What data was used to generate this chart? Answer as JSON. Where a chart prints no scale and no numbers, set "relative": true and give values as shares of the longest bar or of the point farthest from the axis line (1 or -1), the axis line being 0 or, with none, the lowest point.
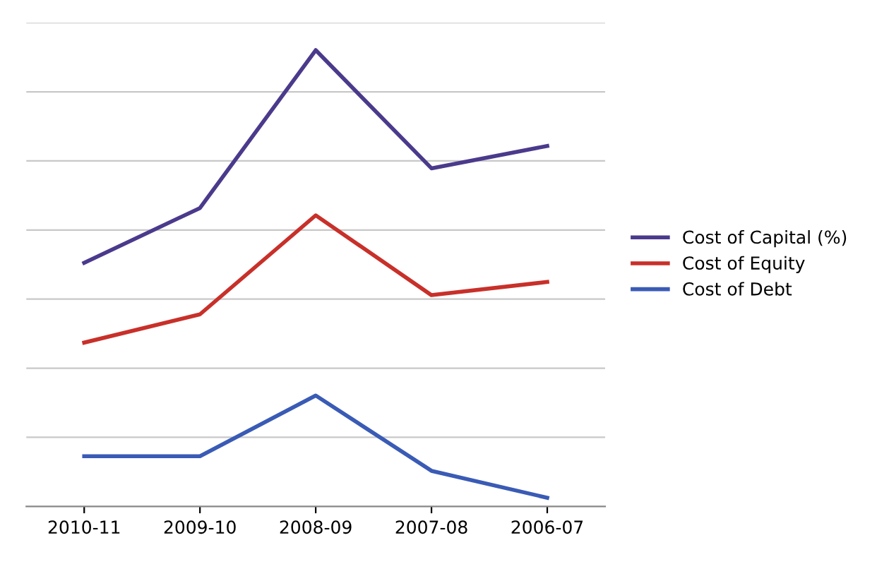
{
  "chart_data": {
    "type": "line",
    "relative": true,
    "categories": [
      "2010-11",
      "2009-10",
      "2008-09",
      "2007-08",
      "2006-07"
    ],
    "series": [
      {
        "name": "Cost of Capital (%)",
        "color": "#4b3a8c",
        "values": [
          0.534,
          0.654,
          1,
          0.741,
          0.79
        ]
      },
      {
        "name": "Cost of Equity",
        "color": "#c8302a",
        "values": [
          0.359,
          0.421,
          0.638,
          0.463,
          0.492
        ]
      },
      {
        "name": "Cost of Debt",
        "color": "#3a5bb5",
        "values": [
          0.11,
          0.11,
          0.243,
          0.078,
          0.019
        ]
      }
    ],
    "grid": "y",
    "legend": "right",
    "marker": "none",
    "line_style": "solid"
  }
}
